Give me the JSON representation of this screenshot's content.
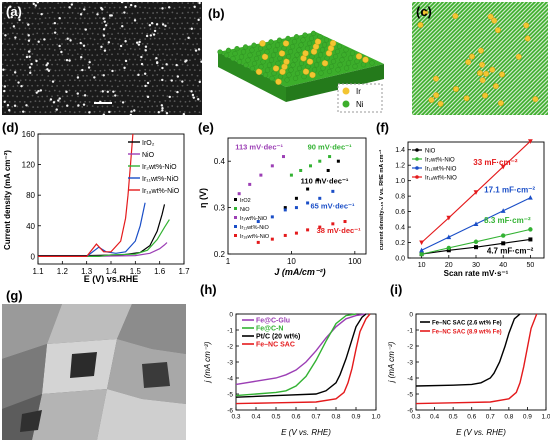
{
  "panel_labels": {
    "a": "(a)",
    "b": "(b)",
    "c": "(c)",
    "d": "(d)",
    "e": "(e)",
    "f": "(f)",
    "g": "(g)",
    "h": "(h)",
    "i": "(i)"
  },
  "colors": {
    "ir": "#f3c531",
    "ni": "#3cae2b",
    "black": "#000000",
    "red": "#e41a1c",
    "blue": "#1a4ec7",
    "green": "#33b233",
    "purple": "#9c3fb5",
    "gray": "#555555"
  },
  "panel_b": {
    "legend": [
      {
        "label": "Ir",
        "color": "#f3c531"
      },
      {
        "label": "Ni",
        "color": "#3cae2b"
      }
    ]
  },
  "panel_d": {
    "ylabel": "Current density (mA cm⁻²)",
    "xlabel": "E (V) vs.RHE",
    "xticks": [
      "1.1",
      "1.2",
      "1.3",
      "1.4",
      "1.5",
      "1.6",
      "1.7"
    ],
    "yticks": [
      "0",
      "40",
      "80",
      "120",
      "160"
    ],
    "legend": [
      "IrO₂",
      "NiO",
      "Ir₂wt%-NiO",
      "Ir₁₁wt%-NiO",
      "Ir₁₈wt%-NiO"
    ]
  },
  "panel_e": {
    "ylabel": "η (V)",
    "xlabel": "J (mA/cm⁻²)",
    "xticks": [
      "1",
      "10",
      "100"
    ],
    "yticks": [
      "0.2",
      "0.3",
      "0.4"
    ],
    "annotations": [
      "113 mV·dec⁻¹",
      "90 mV·dec⁻¹",
      "110 mV·dec⁻¹",
      "65 mV·dec⁻¹",
      "38 mV·dec⁻¹"
    ],
    "legend": [
      "IrO2",
      "NiO",
      "Ir₂wt%-NiO",
      "Ir₁₁wt%-NiO",
      "Ir₁₈wt%-NiO"
    ]
  },
  "panel_f": {
    "ylabel": "current density₀.₁₅ V vs. RHE mA cm⁻²",
    "xlabel": "Scan rate mV·s⁻¹",
    "xticks": [
      "10",
      "20",
      "30",
      "40",
      "50"
    ],
    "yticks": [
      "0.0",
      "0.2",
      "0.4",
      "0.6",
      "0.8",
      "1.0",
      "1.2",
      "1.4"
    ],
    "legend": [
      "NiO",
      "Ir₂wt%-NiO",
      "Ir₁₁wt%-NiO",
      "Ir₁₈wt%-NiO"
    ],
    "annotations": [
      "33 mF·cm⁻²",
      "17.1 mF·cm⁻²",
      "8.3 mF·cm⁻²",
      "4.7 mF·cm⁻²"
    ]
  },
  "panel_h": {
    "ylabel": "j (mA cm⁻²)",
    "xlabel": "E (V vs. RHE)",
    "xticks": [
      "0.3",
      "0.4",
      "0.5",
      "0.6",
      "0.7",
      "0.8",
      "0.9",
      "1.0"
    ],
    "yticks": [
      "0",
      "-1",
      "-2",
      "-3",
      "-4",
      "-5",
      "-6"
    ],
    "legend": [
      "Fe@C-Glu",
      "Fe@C-N",
      "Pt/C (20 wt%)",
      "Fe–NC SAC"
    ]
  },
  "panel_i": {
    "ylabel": "j (mA cm⁻²)",
    "xlabel": "E (V vs. RHE)",
    "xticks": [
      "0.3",
      "0.4",
      "0.5",
      "0.6",
      "0.7",
      "0.8",
      "0.9",
      "1.0"
    ],
    "yticks": [
      "0",
      "-1",
      "-2",
      "-3",
      "-4",
      "-5",
      "-6"
    ],
    "legend": [
      "Fe–NC SAC (2.6 wt% Fe)",
      "Fe–NC SAC (8.9 wt% Fe)"
    ]
  },
  "chart_data": [
    {
      "panel": "d",
      "type": "line",
      "xlabel": "E (V) vs.RHE",
      "ylabel": "Current density (mA cm⁻²)",
      "xlim": [
        1.1,
        1.7
      ],
      "ylim": [
        -10,
        160
      ],
      "series": [
        {
          "name": "IrO₂",
          "color": "#000000",
          "x": [
            1.1,
            1.3,
            1.45,
            1.52,
            1.56,
            1.59,
            1.61,
            1.62
          ],
          "y": [
            1,
            1,
            2,
            5,
            14,
            33,
            55,
            68
          ]
        },
        {
          "name": "NiO",
          "color": "#9c3fb5",
          "x": [
            1.1,
            1.3,
            1.5,
            1.56,
            1.6,
            1.62,
            1.63
          ],
          "y": [
            0,
            0,
            1,
            4,
            10,
            15,
            18
          ]
        },
        {
          "name": "Ir₂wt%-NiO",
          "color": "#33b233",
          "x": [
            1.1,
            1.35,
            1.4,
            1.5,
            1.55,
            1.59,
            1.62,
            1.64
          ],
          "y": [
            0,
            0,
            2,
            3,
            8,
            22,
            38,
            48
          ]
        },
        {
          "name": "Ir₁₁wt%-NiO",
          "color": "#1a4ec7",
          "x": [
            1.1,
            1.3,
            1.35,
            1.38,
            1.42,
            1.46,
            1.5,
            1.52,
            1.54
          ],
          "y": [
            0,
            0,
            12,
            6,
            4,
            6,
            20,
            40,
            70
          ]
        },
        {
          "name": "Ir₁₈wt%-NiO",
          "color": "#e41a1c",
          "x": [
            1.1,
            1.3,
            1.34,
            1.37,
            1.4,
            1.44,
            1.46,
            1.47,
            1.48,
            1.49
          ],
          "y": [
            0,
            0,
            16,
            6,
            6,
            20,
            50,
            80,
            120,
            160
          ]
        }
      ]
    },
    {
      "panel": "e",
      "type": "scatter",
      "xlabel": "J (mA/cm⁻²)",
      "ylabel": "η (V)",
      "xscale": "log",
      "xlim": [
        1,
        150
      ],
      "ylim": [
        0.2,
        0.45
      ],
      "series": [
        {
          "name": "IrO2",
          "color": "#000000",
          "x": [
            8,
            12,
            18,
            26,
            38,
            55
          ],
          "y": [
            0.3,
            0.32,
            0.34,
            0.36,
            0.38,
            0.4
          ]
        },
        {
          "name": "NiO",
          "color": "#33b233",
          "x": [
            10,
            14,
            20,
            28,
            40
          ],
          "y": [
            0.37,
            0.38,
            0.39,
            0.4,
            0.41
          ]
        },
        {
          "name": "Ir₂wt%-NiO",
          "color": "#9c3fb5",
          "x": [
            1.5,
            2.2,
            3.3,
            5,
            7.5
          ],
          "y": [
            0.33,
            0.35,
            0.37,
            0.39,
            0.41
          ]
        },
        {
          "name": "Ir₁₁wt%-NiO",
          "color": "#1a4ec7",
          "x": [
            3,
            5,
            8,
            12,
            18,
            28,
            45
          ],
          "y": [
            0.27,
            0.28,
            0.295,
            0.3,
            0.31,
            0.32,
            0.335
          ]
        },
        {
          "name": "Ir₁₈wt%-NiO",
          "color": "#e41a1c",
          "x": [
            3,
            5,
            8,
            12,
            18,
            28,
            45,
            70
          ],
          "y": [
            0.225,
            0.232,
            0.24,
            0.245,
            0.252,
            0.258,
            0.265,
            0.27
          ]
        }
      ]
    },
    {
      "panel": "f",
      "type": "line",
      "xlabel": "Scan rate mV·s⁻¹",
      "ylabel": "current density mA cm⁻²",
      "xlim": [
        5,
        55
      ],
      "ylim": [
        0,
        1.5
      ],
      "series": [
        {
          "name": "NiO",
          "color": "#000000",
          "x": [
            10,
            20,
            30,
            40,
            50
          ],
          "y": [
            0.05,
            0.1,
            0.14,
            0.19,
            0.24
          ]
        },
        {
          "name": "Ir₂wt%-NiO",
          "color": "#33b233",
          "x": [
            10,
            20,
            30,
            40,
            50
          ],
          "y": [
            0.05,
            0.13,
            0.21,
            0.29,
            0.37
          ]
        },
        {
          "name": "Ir₁₁wt%-NiO",
          "color": "#1a4ec7",
          "x": [
            10,
            20,
            30,
            40,
            50
          ],
          "y": [
            0.1,
            0.27,
            0.44,
            0.61,
            0.78
          ]
        },
        {
          "name": "Ir₁₈wt%-NiO",
          "color": "#e41a1c",
          "x": [
            10,
            20,
            30,
            40,
            50
          ],
          "y": [
            0.2,
            0.52,
            0.85,
            1.18,
            1.51
          ]
        }
      ]
    },
    {
      "panel": "h",
      "type": "line",
      "xlabel": "E (V vs. RHE)",
      "ylabel": "j (mA cm⁻²)",
      "xlim": [
        0.3,
        1.0
      ],
      "ylim": [
        -6,
        0
      ],
      "series": [
        {
          "name": "Fe@C-Glu",
          "color": "#9c3fb5",
          "x": [
            0.3,
            0.4,
            0.5,
            0.55,
            0.6,
            0.65,
            0.7,
            0.75,
            0.8,
            0.85,
            0.9,
            0.95
          ],
          "y": [
            -4.4,
            -4.2,
            -4.0,
            -3.8,
            -3.5,
            -3.0,
            -2.3,
            -1.5,
            -0.8,
            -0.3,
            -0.1,
            0
          ]
        },
        {
          "name": "Fe@C-N",
          "color": "#33b233",
          "x": [
            0.3,
            0.4,
            0.5,
            0.55,
            0.6,
            0.65,
            0.7,
            0.75,
            0.8,
            0.85,
            0.9
          ],
          "y": [
            -5.1,
            -5.0,
            -4.9,
            -4.8,
            -4.5,
            -3.9,
            -2.9,
            -1.7,
            -0.6,
            -0.1,
            0
          ]
        },
        {
          "name": "Pt/C (20 wt%)",
          "color": "#000000",
          "x": [
            0.3,
            0.5,
            0.7,
            0.75,
            0.8,
            0.82,
            0.85,
            0.88,
            0.9,
            0.93,
            0.95
          ],
          "y": [
            -5.2,
            -5.1,
            -5.0,
            -4.8,
            -4.3,
            -3.8,
            -2.8,
            -1.6,
            -0.8,
            -0.2,
            0
          ]
        },
        {
          "name": "Fe–NC SAC",
          "color": "#e41a1c",
          "x": [
            0.3,
            0.5,
            0.7,
            0.8,
            0.84,
            0.86,
            0.88,
            0.9,
            0.92,
            0.95,
            0.97
          ],
          "y": [
            -5.6,
            -5.55,
            -5.5,
            -5.3,
            -4.9,
            -4.3,
            -3.4,
            -2.2,
            -1.1,
            -0.3,
            0
          ]
        }
      ]
    },
    {
      "panel": "i",
      "type": "line",
      "xlabel": "E (V vs. RHE)",
      "ylabel": "j (mA cm⁻²)",
      "xlim": [
        0.3,
        1.0
      ],
      "ylim": [
        -6,
        0
      ],
      "series": [
        {
          "name": "Fe–NC SAC (2.6 wt% Fe)",
          "color": "#000000",
          "x": [
            0.3,
            0.5,
            0.6,
            0.65,
            0.7,
            0.72,
            0.75,
            0.78,
            0.8,
            0.83,
            0.86
          ],
          "y": [
            -4.5,
            -4.45,
            -4.4,
            -4.3,
            -4.0,
            -3.7,
            -3.0,
            -2.0,
            -1.2,
            -0.3,
            0
          ]
        },
        {
          "name": "Fe–NC SAC (8.9 wt% Fe)",
          "color": "#e41a1c",
          "x": [
            0.3,
            0.5,
            0.7,
            0.8,
            0.84,
            0.86,
            0.88,
            0.9,
            0.92,
            0.95
          ],
          "y": [
            -5.6,
            -5.55,
            -5.5,
            -5.3,
            -4.9,
            -4.3,
            -3.3,
            -2.1,
            -0.9,
            0
          ]
        }
      ]
    }
  ]
}
